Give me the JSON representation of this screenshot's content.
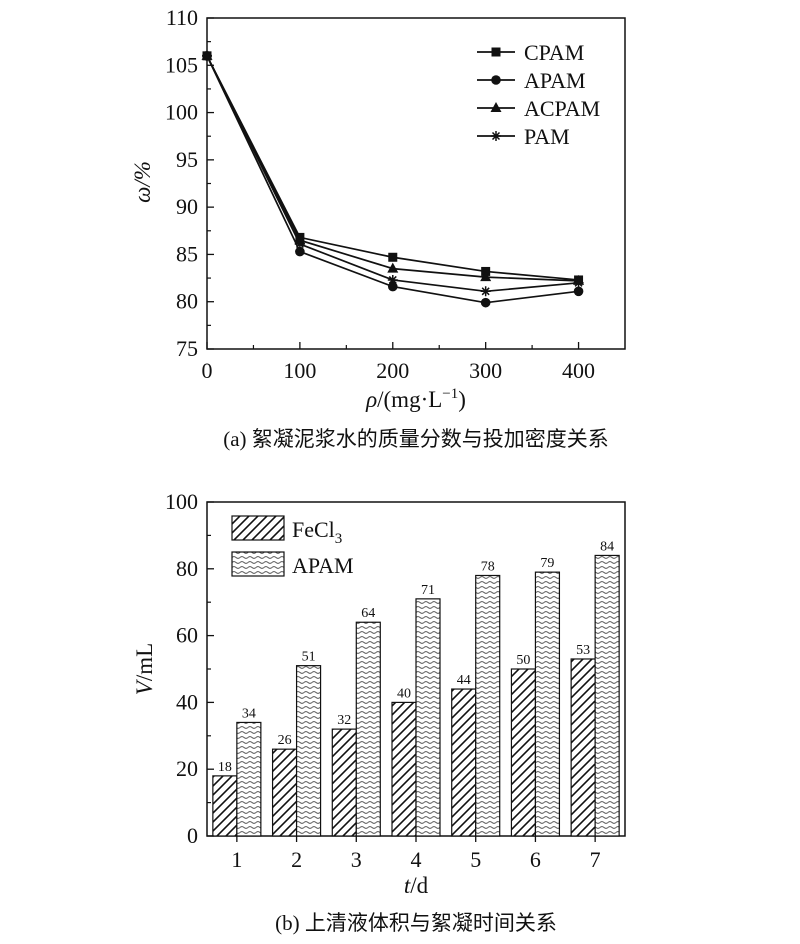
{
  "chart_data": [
    {
      "type": "line",
      "caption": "(a) 絮凝泥浆水的质量分数与投加密度关系",
      "ylabel": "ω/%",
      "xlabel_var": "ρ",
      "xlabel_unit": "/(mg·L",
      "xlabel_exp": "−1",
      "xlabel_close": ")",
      "x": [
        0,
        100,
        200,
        300,
        400
      ],
      "xlim": [
        0,
        450
      ],
      "ylim": [
        75,
        110
      ],
      "xticks": [
        0,
        100,
        200,
        300,
        400
      ],
      "yticks": [
        75,
        80,
        85,
        90,
        95,
        100,
        105,
        110
      ],
      "legend_position": "top-right",
      "series": [
        {
          "name": "CPAM",
          "marker": "square",
          "values": [
            106,
            86.8,
            84.7,
            83.2,
            82.3
          ]
        },
        {
          "name": "APAM",
          "marker": "circle",
          "values": [
            106,
            85.3,
            81.6,
            79.9,
            81.1
          ]
        },
        {
          "name": "ACPAM",
          "marker": "triangle",
          "values": [
            106,
            86.5,
            83.5,
            82.6,
            82.2
          ]
        },
        {
          "name": "PAM",
          "marker": "star",
          "values": [
            106,
            86.1,
            82.3,
            81.1,
            82.0
          ]
        }
      ]
    },
    {
      "type": "bar",
      "caption": "(b) 上清液体积与絮凝时间关系",
      "ylabel_var": "V",
      "ylabel_unit": "/mL",
      "xlabel_var": "t",
      "xlabel_unit": "/d",
      "categories": [
        "1",
        "2",
        "3",
        "4",
        "5",
        "6",
        "7"
      ],
      "ylim": [
        0,
        100
      ],
      "yticks": [
        0,
        20,
        40,
        60,
        80,
        100
      ],
      "legend_position": "top-left",
      "series": [
        {
          "name": "FeCl",
          "name_sub": "3",
          "pattern": "hatch",
          "values": [
            18,
            26,
            32,
            40,
            44,
            50,
            53
          ]
        },
        {
          "name": "APAM",
          "pattern": "wave",
          "values": [
            34,
            51,
            64,
            71,
            78,
            79,
            84
          ]
        }
      ]
    }
  ]
}
